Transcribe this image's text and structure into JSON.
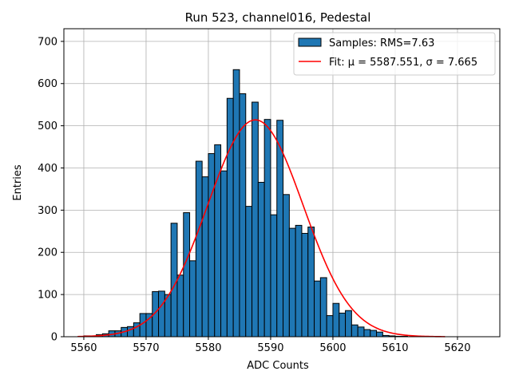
{
  "chart_data": {
    "type": "histogram",
    "title": "Run 523, channel016, Pedestal",
    "xlabel": "ADC Counts",
    "ylabel": "Entries",
    "xlim": [
      5556.8,
      5626.8
    ],
    "ylim": [
      0,
      730
    ],
    "xticks": [
      5560,
      5570,
      5580,
      5590,
      5600,
      5610,
      5620
    ],
    "yticks": [
      0,
      100,
      200,
      300,
      400,
      500,
      600,
      700
    ],
    "grid": true,
    "legend_position": "top-right",
    "bins": {
      "start": 5559,
      "width": 1,
      "counts": [
        0,
        2,
        2,
        5,
        7,
        14,
        14,
        22,
        24,
        33,
        55,
        55,
        107,
        108,
        100,
        269,
        146,
        294,
        180,
        416,
        379,
        434,
        455,
        393,
        565,
        633,
        576,
        309,
        556,
        366,
        515,
        289,
        513,
        337,
        257,
        264,
        245,
        260,
        132,
        140,
        50,
        79,
        56,
        62,
        28,
        23,
        17,
        15,
        11,
        3,
        2,
        1,
        1,
        0,
        0,
        0,
        0,
        0,
        0,
        0,
        0,
        0,
        0,
        0,
        0,
        0
      ]
    },
    "series": [
      {
        "name": "Samples: RMS=7.63",
        "kind": "bar",
        "color": "#1f77b4"
      },
      {
        "name": "Fit: μ = 5587.551, σ = 7.665",
        "kind": "line",
        "color": "#ff0000",
        "mu": 5587.551,
        "sigma": 7.665,
        "amplitude": 514,
        "x_range": [
          5559,
          5618
        ]
      }
    ]
  }
}
